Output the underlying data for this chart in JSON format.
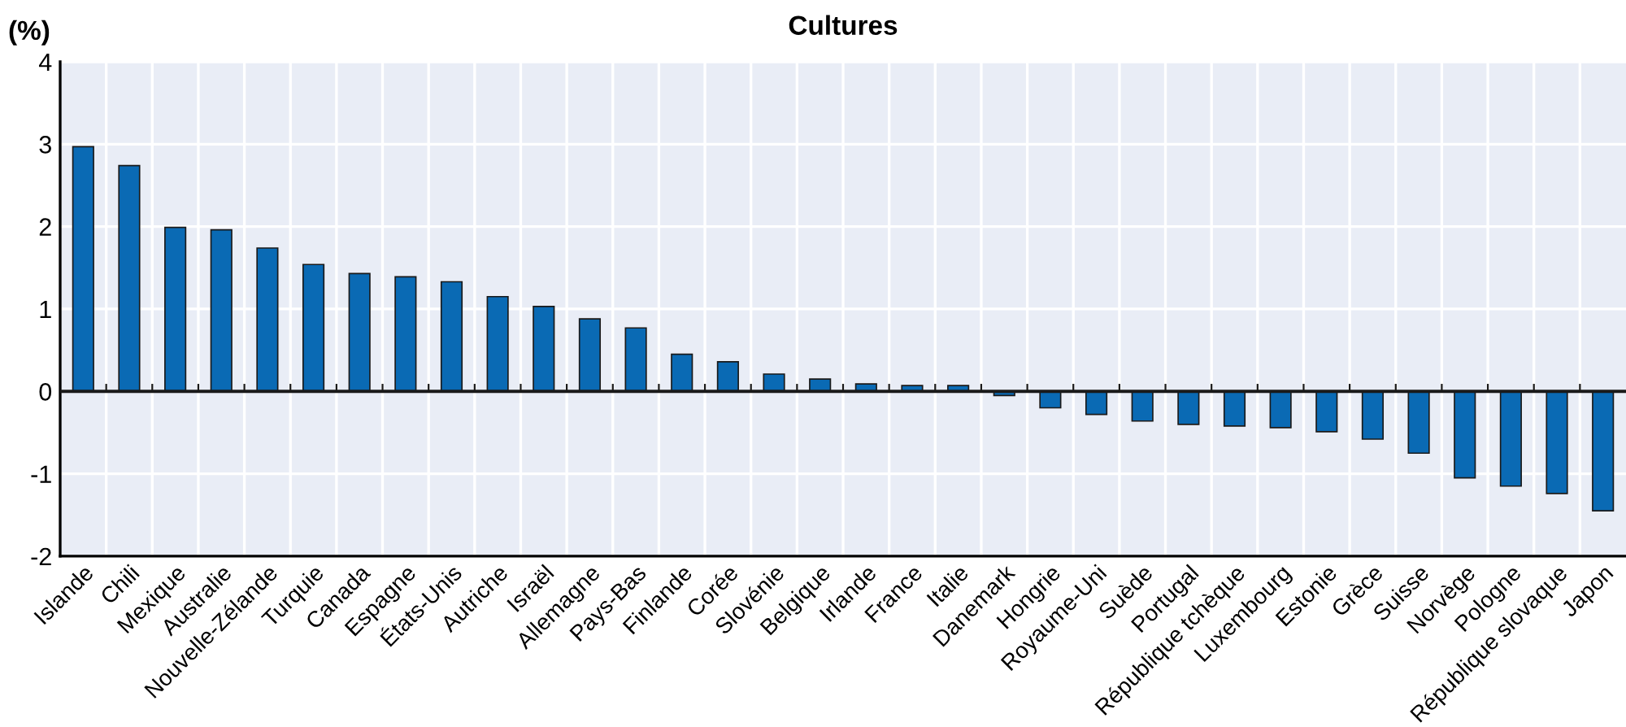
{
  "chart_data": {
    "type": "bar",
    "title": "Cultures",
    "ylabel": "(%)",
    "categories": [
      "Islande",
      "Chili",
      "Mexique",
      "Australie",
      "Nouvelle-Zélande",
      "Turquie",
      "Canada",
      "Espagne",
      "États-Unis",
      "Autriche",
      "Israël",
      "Allemagne",
      "Pays-Bas",
      "Finlande",
      "Corée",
      "Slovénie",
      "Belgique",
      "Irlande",
      "France",
      "Italie",
      "Danemark",
      "Hongrie",
      "Royaume-Uni",
      "Suède",
      "Portugal",
      "République tchèque",
      "Luxembourg",
      "Estonie",
      "Grèce",
      "Suisse",
      "Norvège",
      "Pologne",
      "République slovaque",
      "Japon"
    ],
    "values": [
      2.97,
      2.74,
      1.99,
      1.96,
      1.74,
      1.54,
      1.43,
      1.39,
      1.33,
      1.15,
      1.03,
      0.88,
      0.77,
      0.45,
      0.36,
      0.21,
      0.15,
      0.09,
      0.07,
      0.07,
      -0.05,
      -0.2,
      -0.28,
      -0.36,
      -0.4,
      -0.42,
      -0.44,
      -0.49,
      -0.58,
      -0.75,
      -1.05,
      -1.15,
      -1.24,
      -1.45
    ],
    "color": "#0a6ab4",
    "ylim": [
      -2,
      4
    ],
    "yticks": [
      -2,
      -1,
      0,
      1,
      2,
      3,
      4
    ],
    "grid": true
  }
}
